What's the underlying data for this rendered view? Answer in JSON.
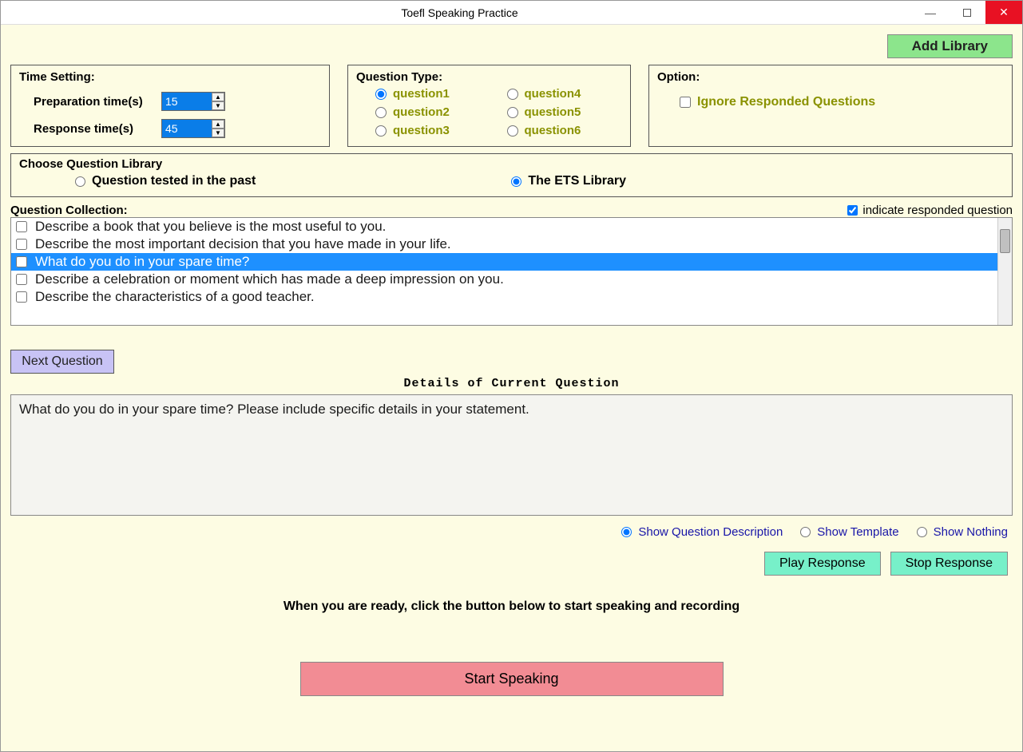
{
  "window": {
    "title": "Toefl Speaking Practice"
  },
  "addLibrary": {
    "label": "Add Library"
  },
  "timeSetting": {
    "legend": "Time Setting:",
    "prepLabel": "Preparation time(s)",
    "prepValue": "15",
    "respLabel": "Response time(s)",
    "respValue": "45"
  },
  "questionType": {
    "legend": "Question Type:",
    "options": [
      "question1",
      "question2",
      "question3",
      "question4",
      "question5",
      "question6"
    ],
    "selected": 0
  },
  "option": {
    "legend": "Option:",
    "ignoreLabel": "Ignore Responded Questions",
    "ignoreChecked": false
  },
  "library": {
    "legend": "Choose Question Library",
    "opt1": "Question tested in the past",
    "opt2": "The ETS Library",
    "selected": 1
  },
  "collection": {
    "title": "Question Collection:",
    "indicateLabel": "indicate responded question",
    "indicateChecked": true,
    "items": [
      "Describe a book that you believe is the most useful to you.",
      "Describe the most important decision that you have made in your life.",
      "What do you do in your spare time?",
      "Describe a celebration or moment which has made a deep impression on you.",
      "Describe the characteristics of a good teacher."
    ],
    "selectedIndex": 2
  },
  "nextQuestion": {
    "label": "Next Question"
  },
  "details": {
    "title": "Details of Current Question",
    "text": "What do you do in your spare time? Please include specific details in your statement."
  },
  "showOptions": {
    "opt1": "Show Question Description",
    "opt2": "Show Template",
    "opt3": "Show Nothing",
    "selected": 0
  },
  "response": {
    "playLabel": "Play Response",
    "stopLabel": "Stop Response"
  },
  "ready": {
    "text": "When you are ready, click the button below to start speaking and recording"
  },
  "start": {
    "label": "Start Speaking"
  },
  "colors": {
    "appBg": "#fdfce3",
    "highlight": "#1e90ff",
    "olive": "#8a9200",
    "addLib": "#8ce58c",
    "nextQ": "#c8c3f5",
    "respBtn": "#77f0c9",
    "startBtn": "#f28c94"
  }
}
